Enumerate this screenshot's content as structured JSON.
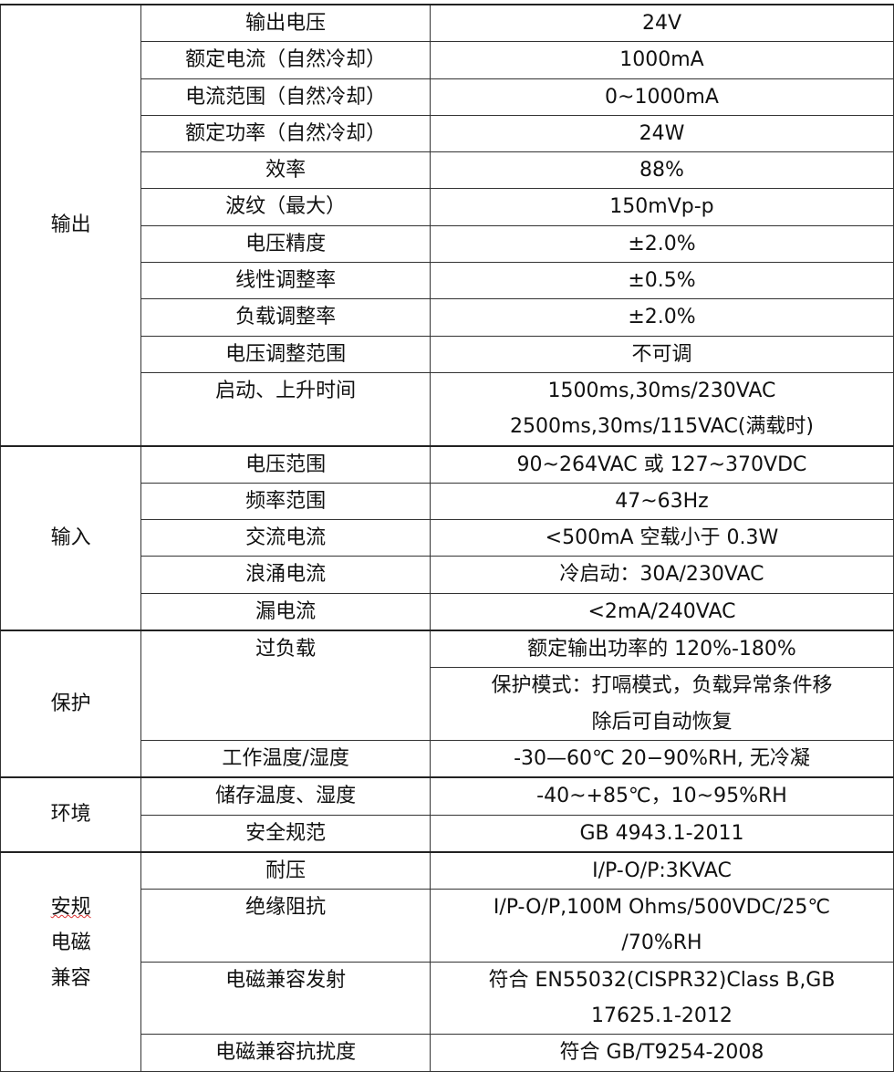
{
  "groups": [
    {
      "label": [
        "输出"
      ],
      "rows": [
        {
          "param": "输出电压",
          "values": [
            [
              "24V"
            ]
          ]
        },
        {
          "param": "额定电流（自然冷却）",
          "values": [
            [
              "1000mA"
            ]
          ]
        },
        {
          "param": "电流范围（自然冷却）",
          "values": [
            [
              "0~1000mA"
            ]
          ]
        },
        {
          "param": "额定功率（自然冷却）",
          "values": [
            [
              "24W"
            ]
          ]
        },
        {
          "param": "效率",
          "values": [
            [
              "88%"
            ]
          ]
        },
        {
          "param": "波纹（最大）",
          "values": [
            [
              "150mVp-p"
            ]
          ]
        },
        {
          "param": "电压精度",
          "values": [
            [
              "±2.0%"
            ]
          ]
        },
        {
          "param": "线性调整率",
          "values": [
            [
              "±0.5%"
            ]
          ]
        },
        {
          "param": "负载调整率",
          "values": [
            [
              "±2.0%"
            ]
          ]
        },
        {
          "param": "电压调整范围",
          "values": [
            [
              "不可调"
            ]
          ]
        },
        {
          "param": "启动、上升时间",
          "values": [
            [
              "1500ms,30ms/230VAC",
              "2500ms,30ms/115VAC(满载时)"
            ]
          ]
        }
      ]
    },
    {
      "label": [
        "输入"
      ],
      "rows": [
        {
          "param": "电压范围",
          "values": [
            [
              "90~264VAC 或 127~370VDC"
            ]
          ]
        },
        {
          "param": "频率范围",
          "values": [
            [
              "47~63Hz"
            ]
          ]
        },
        {
          "param": "交流电流",
          "values": [
            [
              "<500mA 空载小于 0.3W"
            ]
          ]
        },
        {
          "param": "浪涌电流",
          "values": [
            [
              "冷启动：30A/230VAC"
            ]
          ]
        },
        {
          "param": "漏电流",
          "values": [
            [
              "<2mA/240VAC"
            ]
          ]
        }
      ]
    },
    {
      "label": [
        "保护"
      ],
      "rows": [
        {
          "param": "过负载",
          "values": [
            [
              "额定输出功率的 120%-180%"
            ],
            [
              "保护模式：打嗝模式，负载异常条件移",
              "除后可自动恢复"
            ]
          ]
        },
        {
          "param": "工作温度/湿度",
          "values": [
            [
              "-30—60℃  20−90%RH, 无冷凝"
            ]
          ]
        }
      ]
    },
    {
      "label": [
        "环境"
      ],
      "rows": [
        {
          "param": "储存温度、湿度",
          "values": [
            [
              "-40~+85℃，10~95%RH"
            ]
          ]
        },
        {
          "param": "安全规范",
          "values": [
            [
              "GB 4943.1-2011"
            ]
          ]
        }
      ]
    },
    {
      "label": [
        "安规",
        "电磁",
        "兼容"
      ],
      "rows": [
        {
          "param": "耐压",
          "values": [
            [
              "I/P-O/P:3KVAC"
            ]
          ]
        },
        {
          "param": "绝缘阻抗",
          "values": [
            [
              "I/P-O/P,100M Ohms/500VDC/25℃",
              "/70%RH"
            ]
          ]
        },
        {
          "param": "电磁兼容发射",
          "values": [
            [
              "符合 EN55032(CISPR32)Class B,GB",
              "17625.1-2012"
            ]
          ]
        },
        {
          "param": "电磁兼容抗扰度",
          "values": [
            [
              "符合 GB/T9254-2008"
            ]
          ]
        }
      ]
    }
  ]
}
